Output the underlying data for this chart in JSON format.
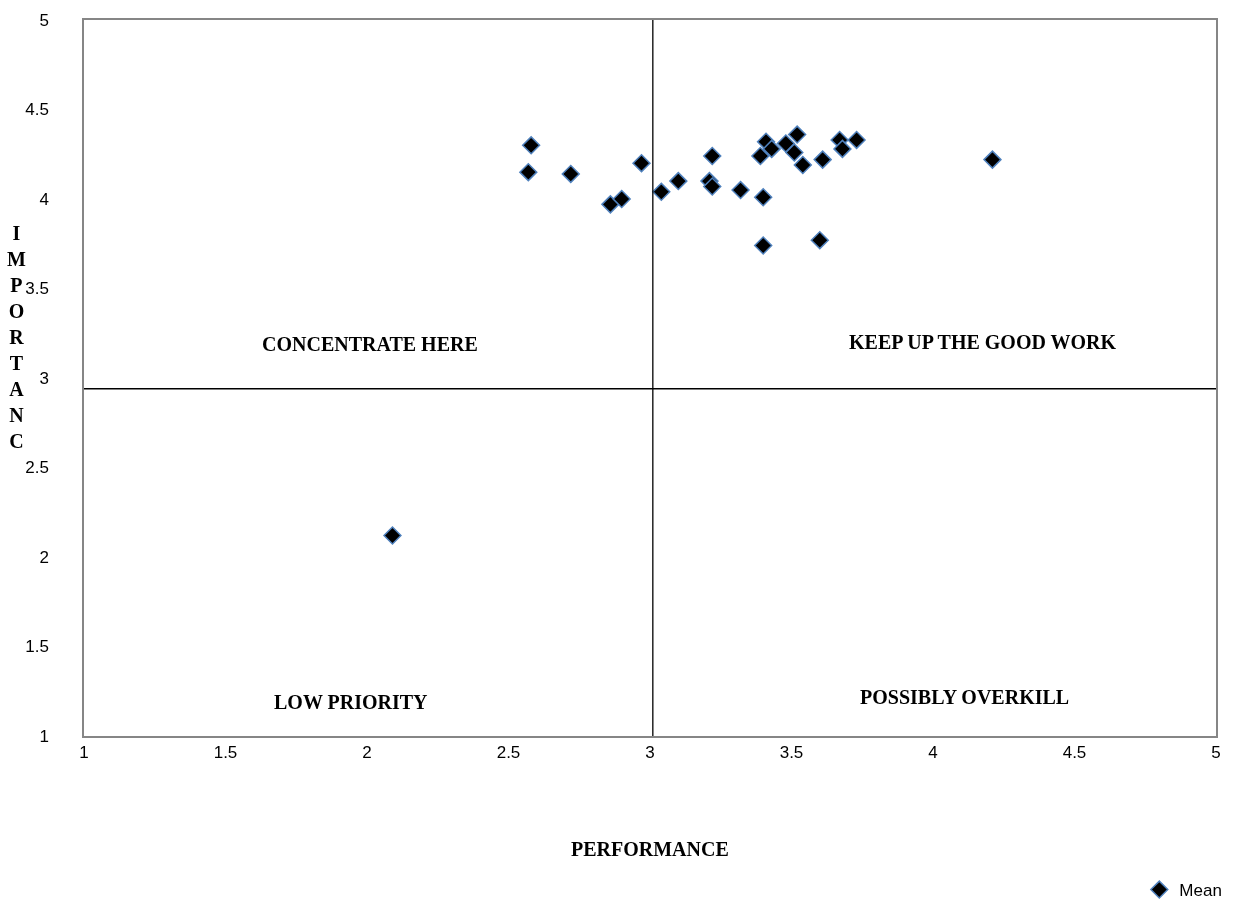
{
  "chart_data": {
    "type": "scatter",
    "xlabel": "PERFORMANCE",
    "ylabel": "IMPORTANC",
    "x": [
      2.57,
      2.58,
      2.72,
      2.97,
      2.86,
      2.9,
      3.04,
      3.1,
      3.22,
      3.21,
      3.22,
      3.32,
      3.39,
      3.4,
      3.41,
      3.43,
      3.48,
      3.52,
      3.51,
      3.54,
      3.61,
      3.4,
      3.6,
      3.67,
      3.68,
      3.73,
      4.21,
      2.09
    ],
    "series": [
      {
        "name": "Mean",
        "color": "#000000",
        "values": [
          4.15,
          4.3,
          4.14,
          4.2,
          3.97,
          4.0,
          4.04,
          4.1,
          4.24,
          4.1,
          4.07,
          4.05,
          4.24,
          4.01,
          4.32,
          4.28,
          4.31,
          4.36,
          4.26,
          4.19,
          4.22,
          3.74,
          3.77,
          4.33,
          4.28,
          4.33,
          4.22,
          2.12
        ]
      }
    ],
    "xlim": [
      1,
      5
    ],
    "ylim": [
      1,
      5
    ],
    "xticks": [
      1,
      1.5,
      2,
      2.5,
      3,
      3.5,
      4,
      4.5,
      5
    ],
    "yticks": [
      1,
      1.5,
      2,
      2.5,
      3,
      3.5,
      4,
      4.5,
      5
    ],
    "ref_lines": [
      {
        "axis": "x",
        "value": 3.01,
        "color": "#000000"
      },
      {
        "axis": "y",
        "value": 2.94,
        "color": "#000000"
      }
    ],
    "annotations": [
      "CONCENTRATE HERE",
      "KEEP UP THE GOOD WORK",
      "LOW PRIORITY",
      "POSSIBLY OVERKILL"
    ],
    "marker": "diamond",
    "legend": "bottom right"
  }
}
